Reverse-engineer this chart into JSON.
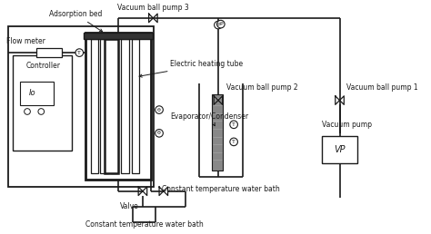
{
  "bg_color": "#ffffff",
  "line_color": "#1a1a1a",
  "lw": 1.2,
  "labels": {
    "adsorption_bed": "Adsorption bed",
    "flow_meter": "Flow meter",
    "vacuum_ball_pump3": "Vacuum ball pump 3",
    "electric_heating": "Electric heating tube",
    "controller": "Controller",
    "evaporator": "Evaporator/Condenser",
    "valve_bottom": "Valve",
    "const_temp1": "Constant temperature water bath",
    "const_temp2": "Constant temperature water bath",
    "vacuum_ball_pump2": "Vacuum ball pump 2",
    "vacuum_ball_pump1": "Vacuum ball pump 1",
    "vacuum_pump": "Vacuum pump"
  }
}
